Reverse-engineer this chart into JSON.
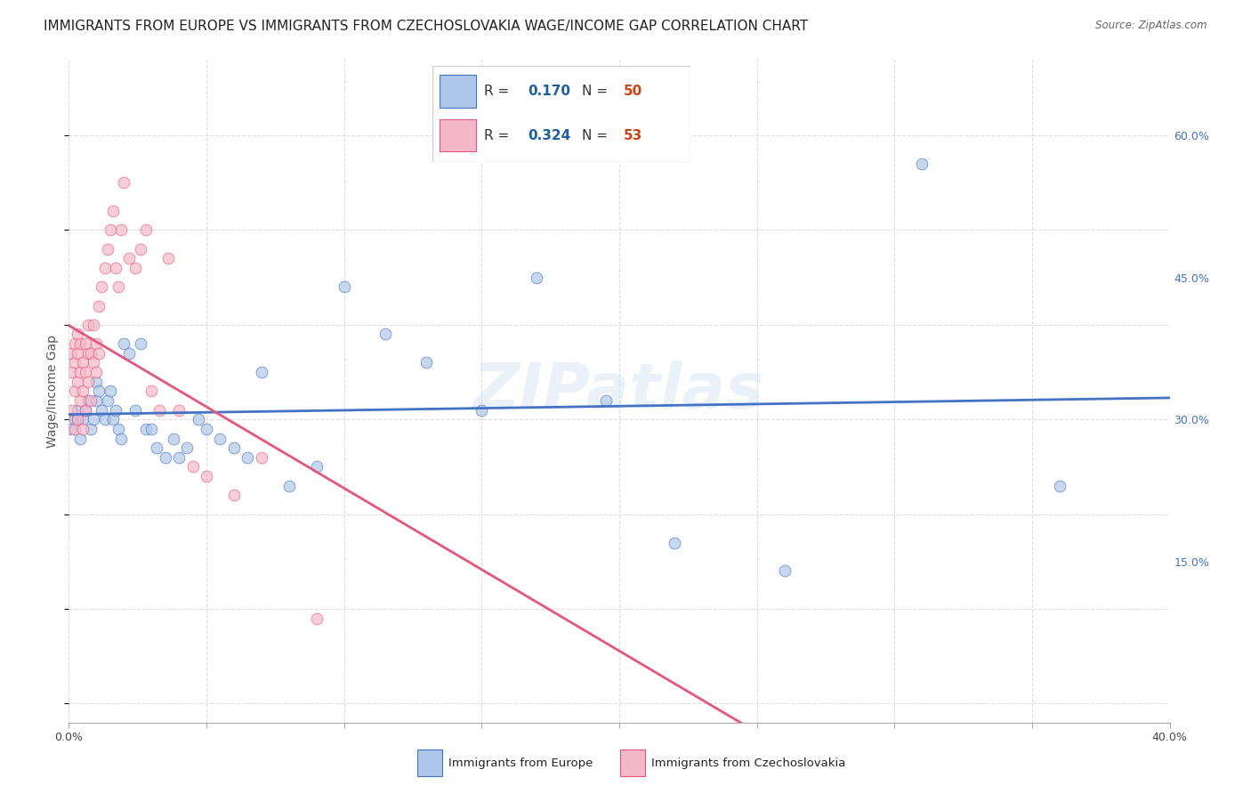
{
  "title": "IMMIGRANTS FROM EUROPE VS IMMIGRANTS FROM CZECHOSLOVAKIA WAGE/INCOME GAP CORRELATION CHART",
  "source": "Source: ZipAtlas.com",
  "ylabel": "Wage/Income Gap",
  "xlim": [
    0.0,
    0.4
  ],
  "ylim": [
    -0.02,
    0.68
  ],
  "yticks_right": [
    0.15,
    0.3,
    0.45,
    0.6
  ],
  "ytick_labels_right": [
    "15.0%",
    "30.0%",
    "45.0%",
    "60.0%"
  ],
  "xticks": [
    0.0,
    0.05,
    0.1,
    0.15,
    0.2,
    0.25,
    0.3,
    0.35,
    0.4
  ],
  "series": [
    {
      "name": "Immigrants from Europe",
      "R": 0.17,
      "N": 50,
      "line_color": "#4472c4",
      "scatter_color": "#aec6e8",
      "x": [
        0.001,
        0.002,
        0.003,
        0.003,
        0.004,
        0.005,
        0.006,
        0.007,
        0.008,
        0.009,
        0.01,
        0.01,
        0.011,
        0.012,
        0.013,
        0.014,
        0.015,
        0.016,
        0.017,
        0.018,
        0.019,
        0.02,
        0.022,
        0.024,
        0.026,
        0.028,
        0.03,
        0.032,
        0.035,
        0.038,
        0.04,
        0.043,
        0.047,
        0.05,
        0.055,
        0.06,
        0.065,
        0.07,
        0.08,
        0.09,
        0.1,
        0.115,
        0.13,
        0.15,
        0.17,
        0.195,
        0.22,
        0.26,
        0.31,
        0.36
      ],
      "y": [
        0.29,
        0.3,
        0.31,
        0.3,
        0.28,
        0.3,
        0.31,
        0.32,
        0.29,
        0.3,
        0.32,
        0.34,
        0.33,
        0.31,
        0.3,
        0.32,
        0.33,
        0.3,
        0.31,
        0.29,
        0.28,
        0.38,
        0.37,
        0.31,
        0.38,
        0.29,
        0.29,
        0.27,
        0.26,
        0.28,
        0.26,
        0.27,
        0.3,
        0.29,
        0.28,
        0.27,
        0.26,
        0.35,
        0.23,
        0.25,
        0.44,
        0.39,
        0.36,
        0.31,
        0.45,
        0.32,
        0.17,
        0.14,
        0.57,
        0.23
      ]
    },
    {
      "name": "Immigrants from Czechoslovakia",
      "R": 0.324,
      "N": 53,
      "line_color": "#e8547a",
      "scatter_color": "#f4b8c8",
      "x": [
        0.001,
        0.001,
        0.001,
        0.002,
        0.002,
        0.002,
        0.002,
        0.003,
        0.003,
        0.003,
        0.003,
        0.004,
        0.004,
        0.004,
        0.005,
        0.005,
        0.005,
        0.006,
        0.006,
        0.006,
        0.007,
        0.007,
        0.007,
        0.008,
        0.008,
        0.009,
        0.009,
        0.01,
        0.01,
        0.011,
        0.011,
        0.012,
        0.013,
        0.014,
        0.015,
        0.016,
        0.017,
        0.018,
        0.019,
        0.02,
        0.022,
        0.024,
        0.026,
        0.028,
        0.03,
        0.033,
        0.036,
        0.04,
        0.045,
        0.05,
        0.06,
        0.07,
        0.09
      ],
      "y": [
        0.31,
        0.35,
        0.37,
        0.29,
        0.33,
        0.36,
        0.38,
        0.3,
        0.34,
        0.37,
        0.39,
        0.32,
        0.35,
        0.38,
        0.29,
        0.33,
        0.36,
        0.31,
        0.35,
        0.38,
        0.34,
        0.37,
        0.4,
        0.32,
        0.37,
        0.36,
        0.4,
        0.35,
        0.38,
        0.37,
        0.42,
        0.44,
        0.46,
        0.48,
        0.5,
        0.52,
        0.46,
        0.44,
        0.5,
        0.55,
        0.47,
        0.46,
        0.48,
        0.5,
        0.33,
        0.31,
        0.47,
        0.31,
        0.25,
        0.24,
        0.22,
        0.26,
        0.09
      ]
    }
  ],
  "legend_R_color": "#1a5fa8",
  "legend_N_color": "#d04010",
  "watermark": "ZIPatlas",
  "background_color": "#ffffff",
  "grid_color": "#dddddd",
  "title_fontsize": 11,
  "axis_label_fontsize": 10,
  "tick_fontsize": 9,
  "scatter_size": 85,
  "scatter_alpha": 0.7,
  "line_width": 2.0
}
